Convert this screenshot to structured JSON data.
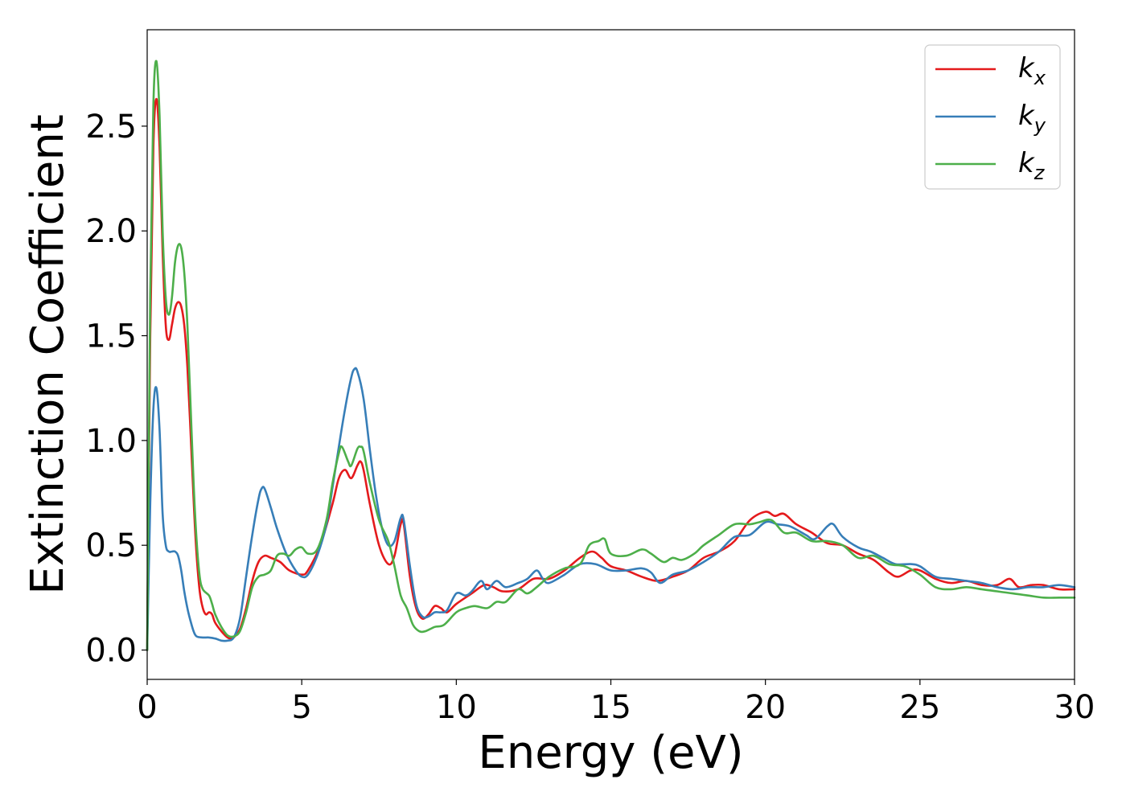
{
  "chart_data": {
    "type": "line",
    "title": "",
    "xlabel": "Energy (eV)",
    "ylabel": "Extinction Coefficient",
    "xlim": [
      0,
      30
    ],
    "ylim": [
      -0.14,
      2.96
    ],
    "xticks": [
      0,
      5,
      10,
      15,
      20,
      25,
      30
    ],
    "xtick_labels": [
      "0",
      "5",
      "10",
      "15",
      "20",
      "25",
      "30"
    ],
    "yticks": [
      0.0,
      0.5,
      1.0,
      1.5,
      2.0,
      2.5
    ],
    "ytick_labels": [
      "0.0",
      "0.5",
      "1.0",
      "1.5",
      "2.0",
      "2.5"
    ],
    "grid": false,
    "legend_position": "top-right",
    "series": [
      {
        "name": "k",
        "subscript": "x",
        "color": "#e41a1c",
        "points": [
          [
            0,
            0.0
          ],
          [
            0.1,
            1.5
          ],
          [
            0.2,
            2.4
          ],
          [
            0.3,
            2.63
          ],
          [
            0.4,
            2.4
          ],
          [
            0.5,
            1.9
          ],
          [
            0.6,
            1.55
          ],
          [
            0.7,
            1.48
          ],
          [
            0.8,
            1.55
          ],
          [
            0.9,
            1.63
          ],
          [
            1.0,
            1.66
          ],
          [
            1.1,
            1.64
          ],
          [
            1.2,
            1.55
          ],
          [
            1.3,
            1.35
          ],
          [
            1.4,
            1.05
          ],
          [
            1.5,
            0.72
          ],
          [
            1.6,
            0.45
          ],
          [
            1.7,
            0.28
          ],
          [
            1.8,
            0.2
          ],
          [
            1.9,
            0.17
          ],
          [
            2.0,
            0.18
          ],
          [
            2.1,
            0.17
          ],
          [
            2.2,
            0.13
          ],
          [
            2.4,
            0.09
          ],
          [
            2.6,
            0.06
          ],
          [
            2.7,
            0.055
          ],
          [
            2.8,
            0.06
          ],
          [
            3.0,
            0.1
          ],
          [
            3.2,
            0.2
          ],
          [
            3.4,
            0.33
          ],
          [
            3.6,
            0.42
          ],
          [
            3.8,
            0.45
          ],
          [
            4.0,
            0.44
          ],
          [
            4.3,
            0.42
          ],
          [
            4.6,
            0.38
          ],
          [
            5.0,
            0.36
          ],
          [
            5.2,
            0.38
          ],
          [
            5.6,
            0.5
          ],
          [
            6.0,
            0.7
          ],
          [
            6.2,
            0.82
          ],
          [
            6.4,
            0.86
          ],
          [
            6.6,
            0.82
          ],
          [
            6.8,
            0.88
          ],
          [
            6.9,
            0.9
          ],
          [
            7.0,
            0.86
          ],
          [
            7.2,
            0.7
          ],
          [
            7.5,
            0.5
          ],
          [
            7.8,
            0.41
          ],
          [
            8.0,
            0.45
          ],
          [
            8.2,
            0.6
          ],
          [
            8.3,
            0.6
          ],
          [
            8.5,
            0.35
          ],
          [
            8.7,
            0.2
          ],
          [
            8.9,
            0.15
          ],
          [
            9.1,
            0.17
          ],
          [
            9.3,
            0.21
          ],
          [
            9.5,
            0.2
          ],
          [
            9.7,
            0.18
          ],
          [
            10.0,
            0.22
          ],
          [
            10.5,
            0.27
          ],
          [
            10.9,
            0.31
          ],
          [
            11.2,
            0.3
          ],
          [
            11.5,
            0.28
          ],
          [
            12.0,
            0.29
          ],
          [
            12.5,
            0.34
          ],
          [
            13.0,
            0.34
          ],
          [
            13.5,
            0.38
          ],
          [
            14.0,
            0.44
          ],
          [
            14.4,
            0.47
          ],
          [
            14.7,
            0.44
          ],
          [
            15.0,
            0.4
          ],
          [
            15.5,
            0.38
          ],
          [
            16.0,
            0.35
          ],
          [
            16.5,
            0.33
          ],
          [
            17.0,
            0.35
          ],
          [
            17.5,
            0.38
          ],
          [
            18.0,
            0.44
          ],
          [
            18.5,
            0.47
          ],
          [
            19.0,
            0.52
          ],
          [
            19.5,
            0.62
          ],
          [
            20.0,
            0.66
          ],
          [
            20.3,
            0.64
          ],
          [
            20.6,
            0.65
          ],
          [
            21.0,
            0.6
          ],
          [
            21.5,
            0.56
          ],
          [
            22.0,
            0.51
          ],
          [
            22.5,
            0.5
          ],
          [
            23.0,
            0.46
          ],
          [
            23.5,
            0.43
          ],
          [
            24.0,
            0.37
          ],
          [
            24.3,
            0.35
          ],
          [
            24.7,
            0.38
          ],
          [
            25.0,
            0.38
          ],
          [
            25.5,
            0.34
          ],
          [
            26.0,
            0.32
          ],
          [
            26.5,
            0.33
          ],
          [
            27.0,
            0.31
          ],
          [
            27.5,
            0.31
          ],
          [
            27.9,
            0.34
          ],
          [
            28.2,
            0.3
          ],
          [
            28.6,
            0.31
          ],
          [
            29.0,
            0.31
          ],
          [
            29.5,
            0.29
          ],
          [
            30.0,
            0.29
          ]
        ]
      },
      {
        "name": "k",
        "subscript": "y",
        "color": "#377eb8",
        "points": [
          [
            0,
            0.0
          ],
          [
            0.1,
            0.7
          ],
          [
            0.2,
            1.15
          ],
          [
            0.3,
            1.25
          ],
          [
            0.4,
            1.05
          ],
          [
            0.5,
            0.65
          ],
          [
            0.6,
            0.5
          ],
          [
            0.7,
            0.47
          ],
          [
            0.8,
            0.47
          ],
          [
            0.9,
            0.47
          ],
          [
            1.0,
            0.45
          ],
          [
            1.1,
            0.38
          ],
          [
            1.2,
            0.28
          ],
          [
            1.3,
            0.2
          ],
          [
            1.4,
            0.14
          ],
          [
            1.5,
            0.09
          ],
          [
            1.6,
            0.065
          ],
          [
            1.8,
            0.06
          ],
          [
            2.0,
            0.06
          ],
          [
            2.2,
            0.055
          ],
          [
            2.4,
            0.045
          ],
          [
            2.6,
            0.045
          ],
          [
            2.8,
            0.06
          ],
          [
            3.0,
            0.15
          ],
          [
            3.2,
            0.35
          ],
          [
            3.4,
            0.55
          ],
          [
            3.6,
            0.72
          ],
          [
            3.7,
            0.77
          ],
          [
            3.8,
            0.77
          ],
          [
            4.0,
            0.68
          ],
          [
            4.2,
            0.58
          ],
          [
            4.5,
            0.46
          ],
          [
            4.8,
            0.38
          ],
          [
            5.0,
            0.35
          ],
          [
            5.2,
            0.36
          ],
          [
            5.5,
            0.45
          ],
          [
            5.8,
            0.6
          ],
          [
            6.0,
            0.78
          ],
          [
            6.2,
            0.97
          ],
          [
            6.4,
            1.15
          ],
          [
            6.6,
            1.3
          ],
          [
            6.7,
            1.34
          ],
          [
            6.8,
            1.33
          ],
          [
            7.0,
            1.2
          ],
          [
            7.2,
            0.96
          ],
          [
            7.4,
            0.74
          ],
          [
            7.6,
            0.58
          ],
          [
            7.8,
            0.5
          ],
          [
            8.0,
            0.52
          ],
          [
            8.2,
            0.63
          ],
          [
            8.3,
            0.62
          ],
          [
            8.5,
            0.4
          ],
          [
            8.7,
            0.22
          ],
          [
            8.9,
            0.16
          ],
          [
            9.1,
            0.16
          ],
          [
            9.3,
            0.18
          ],
          [
            9.5,
            0.18
          ],
          [
            9.7,
            0.19
          ],
          [
            10.0,
            0.27
          ],
          [
            10.3,
            0.26
          ],
          [
            10.5,
            0.28
          ],
          [
            10.8,
            0.33
          ],
          [
            11.0,
            0.29
          ],
          [
            11.3,
            0.33
          ],
          [
            11.6,
            0.3
          ],
          [
            12.0,
            0.32
          ],
          [
            12.3,
            0.34
          ],
          [
            12.6,
            0.38
          ],
          [
            12.8,
            0.34
          ],
          [
            13.0,
            0.32
          ],
          [
            13.5,
            0.36
          ],
          [
            14.0,
            0.41
          ],
          [
            14.5,
            0.41
          ],
          [
            15.0,
            0.38
          ],
          [
            15.5,
            0.38
          ],
          [
            16.0,
            0.39
          ],
          [
            16.3,
            0.37
          ],
          [
            16.6,
            0.32
          ],
          [
            17.0,
            0.36
          ],
          [
            17.5,
            0.38
          ],
          [
            18.0,
            0.42
          ],
          [
            18.5,
            0.47
          ],
          [
            19.0,
            0.54
          ],
          [
            19.5,
            0.55
          ],
          [
            20.0,
            0.61
          ],
          [
            20.4,
            0.6
          ],
          [
            20.8,
            0.59
          ],
          [
            21.3,
            0.55
          ],
          [
            21.6,
            0.53
          ],
          [
            22.0,
            0.59
          ],
          [
            22.2,
            0.6
          ],
          [
            22.5,
            0.54
          ],
          [
            23.0,
            0.49
          ],
          [
            23.4,
            0.47
          ],
          [
            23.8,
            0.44
          ],
          [
            24.2,
            0.41
          ],
          [
            24.7,
            0.41
          ],
          [
            25.0,
            0.4
          ],
          [
            25.5,
            0.35
          ],
          [
            26.0,
            0.34
          ],
          [
            26.5,
            0.33
          ],
          [
            27.0,
            0.32
          ],
          [
            27.5,
            0.3
          ],
          [
            28.0,
            0.29
          ],
          [
            28.5,
            0.3
          ],
          [
            29.0,
            0.3
          ],
          [
            29.5,
            0.31
          ],
          [
            30.0,
            0.3
          ]
        ]
      },
      {
        "name": "k",
        "subscript": "z",
        "color": "#4daf4a",
        "points": [
          [
            0,
            0.0
          ],
          [
            0.1,
            1.7
          ],
          [
            0.2,
            2.6
          ],
          [
            0.3,
            2.81
          ],
          [
            0.4,
            2.55
          ],
          [
            0.5,
            2.0
          ],
          [
            0.6,
            1.68
          ],
          [
            0.7,
            1.6
          ],
          [
            0.8,
            1.68
          ],
          [
            0.9,
            1.85
          ],
          [
            1.0,
            1.93
          ],
          [
            1.1,
            1.92
          ],
          [
            1.2,
            1.8
          ],
          [
            1.3,
            1.55
          ],
          [
            1.4,
            1.18
          ],
          [
            1.5,
            0.8
          ],
          [
            1.6,
            0.52
          ],
          [
            1.7,
            0.35
          ],
          [
            1.8,
            0.29
          ],
          [
            2.0,
            0.26
          ],
          [
            2.1,
            0.22
          ],
          [
            2.2,
            0.17
          ],
          [
            2.4,
            0.11
          ],
          [
            2.6,
            0.07
          ],
          [
            2.8,
            0.065
          ],
          [
            3.0,
            0.09
          ],
          [
            3.2,
            0.18
          ],
          [
            3.4,
            0.3
          ],
          [
            3.6,
            0.35
          ],
          [
            3.8,
            0.36
          ],
          [
            4.0,
            0.38
          ],
          [
            4.2,
            0.45
          ],
          [
            4.4,
            0.46
          ],
          [
            4.6,
            0.45
          ],
          [
            4.8,
            0.48
          ],
          [
            5.0,
            0.49
          ],
          [
            5.2,
            0.46
          ],
          [
            5.5,
            0.48
          ],
          [
            5.8,
            0.62
          ],
          [
            6.0,
            0.8
          ],
          [
            6.2,
            0.94
          ],
          [
            6.3,
            0.97
          ],
          [
            6.5,
            0.9
          ],
          [
            6.6,
            0.88
          ],
          [
            6.8,
            0.96
          ],
          [
            6.9,
            0.97
          ],
          [
            7.0,
            0.95
          ],
          [
            7.2,
            0.8
          ],
          [
            7.5,
            0.62
          ],
          [
            7.8,
            0.52
          ],
          [
            8.0,
            0.4
          ],
          [
            8.2,
            0.26
          ],
          [
            8.4,
            0.2
          ],
          [
            8.6,
            0.12
          ],
          [
            8.8,
            0.09
          ],
          [
            9.0,
            0.09
          ],
          [
            9.3,
            0.11
          ],
          [
            9.6,
            0.12
          ],
          [
            10.0,
            0.18
          ],
          [
            10.3,
            0.2
          ],
          [
            10.6,
            0.21
          ],
          [
            11.0,
            0.2
          ],
          [
            11.3,
            0.23
          ],
          [
            11.6,
            0.23
          ],
          [
            12.0,
            0.29
          ],
          [
            12.3,
            0.27
          ],
          [
            12.6,
            0.3
          ],
          [
            13.0,
            0.35
          ],
          [
            13.5,
            0.39
          ],
          [
            14.0,
            0.41
          ],
          [
            14.3,
            0.5
          ],
          [
            14.6,
            0.52
          ],
          [
            14.8,
            0.53
          ],
          [
            15.0,
            0.46
          ],
          [
            15.5,
            0.45
          ],
          [
            16.0,
            0.48
          ],
          [
            16.3,
            0.46
          ],
          [
            16.7,
            0.42
          ],
          [
            17.0,
            0.44
          ],
          [
            17.3,
            0.43
          ],
          [
            17.7,
            0.46
          ],
          [
            18.0,
            0.5
          ],
          [
            18.5,
            0.55
          ],
          [
            19.0,
            0.6
          ],
          [
            19.5,
            0.6
          ],
          [
            19.8,
            0.61
          ],
          [
            20.2,
            0.62
          ],
          [
            20.6,
            0.56
          ],
          [
            21.0,
            0.56
          ],
          [
            21.5,
            0.52
          ],
          [
            22.0,
            0.52
          ],
          [
            22.5,
            0.5
          ],
          [
            23.0,
            0.44
          ],
          [
            23.5,
            0.45
          ],
          [
            24.0,
            0.41
          ],
          [
            24.5,
            0.4
          ],
          [
            25.0,
            0.36
          ],
          [
            25.5,
            0.3
          ],
          [
            26.0,
            0.29
          ],
          [
            26.5,
            0.3
          ],
          [
            27.0,
            0.29
          ],
          [
            27.5,
            0.28
          ],
          [
            28.0,
            0.27
          ],
          [
            28.5,
            0.26
          ],
          [
            29.0,
            0.25
          ],
          [
            29.5,
            0.25
          ],
          [
            30.0,
            0.25
          ]
        ]
      }
    ]
  }
}
